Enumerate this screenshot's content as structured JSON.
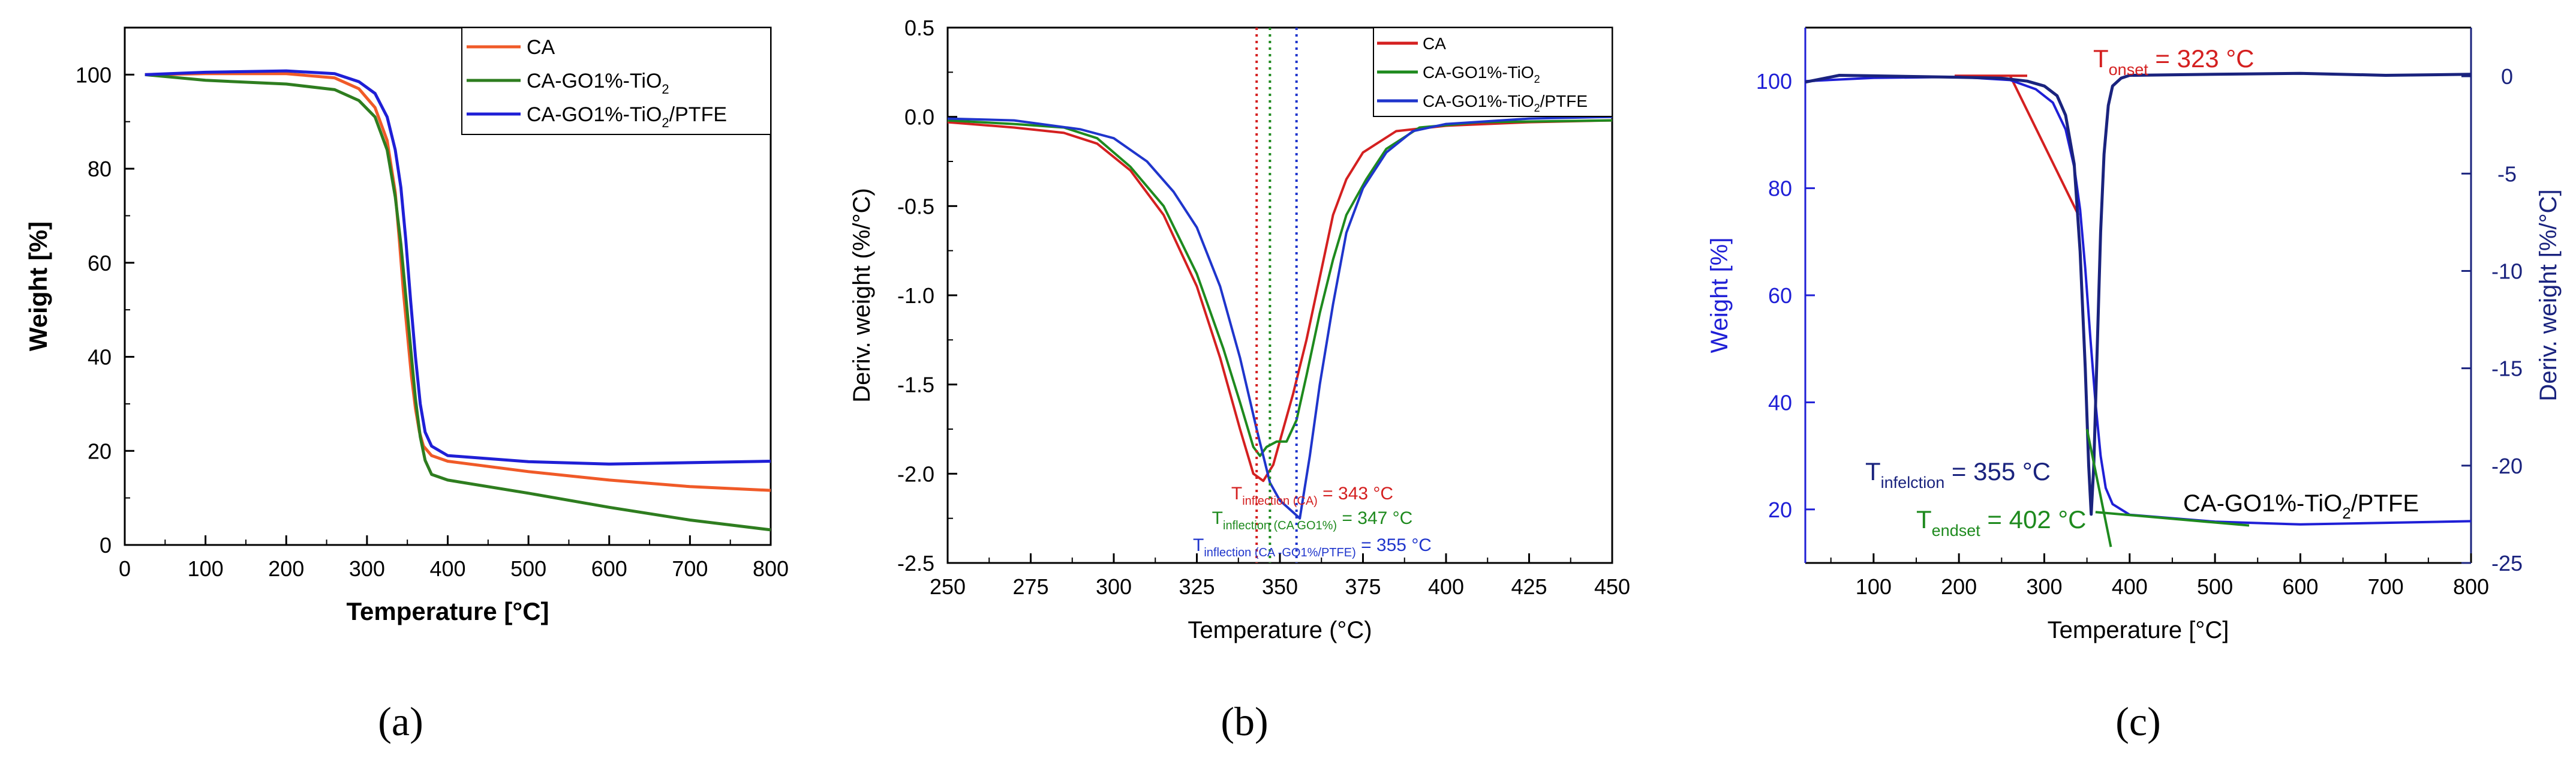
{
  "figure_labels": [
    "(a)",
    "(b)",
    "(c)"
  ],
  "chart_data": [
    {
      "type": "line",
      "panel": "(a)",
      "title": "",
      "xlabel": "Temperature [°C]",
      "ylabel": "Weight [%]",
      "xlim": [
        0,
        800
      ],
      "ylim": [
        0,
        110
      ],
      "xticks": [
        "0",
        "100",
        "200",
        "300",
        "400",
        "500",
        "600",
        "700",
        "800"
      ],
      "yticks": [
        "0",
        "20",
        "40",
        "60",
        "80",
        "100"
      ],
      "legend_position": "top-right",
      "series": [
        {
          "name": "CA",
          "legend_parts": [
            {
              "t": "CA"
            }
          ],
          "color": "#f05a28",
          "points": [
            [
              25,
              100
            ],
            [
              100,
              100.2
            ],
            [
              200,
              100.2
            ],
            [
              260,
              99.3
            ],
            [
              290,
              97
            ],
            [
              310,
              93
            ],
            [
              325,
              86
            ],
            [
              335,
              75
            ],
            [
              340,
              65
            ],
            [
              345,
              54
            ],
            [
              350,
              45
            ],
            [
              355,
              36
            ],
            [
              360,
              29
            ],
            [
              365,
              24
            ],
            [
              370,
              21
            ],
            [
              380,
              19
            ],
            [
              400,
              17.8
            ],
            [
              500,
              15.6
            ],
            [
              600,
              13.8
            ],
            [
              700,
              12.4
            ],
            [
              800,
              11.6
            ]
          ]
        },
        {
          "name": "CA-GO1%-TiO2",
          "legend_parts": [
            {
              "t": "CA-GO1%-TiO"
            },
            {
              "t": "2",
              "sub": true
            }
          ],
          "color": "#2e7d1f",
          "points": [
            [
              25,
              100
            ],
            [
              100,
              98.8
            ],
            [
              200,
              98
            ],
            [
              260,
              96.8
            ],
            [
              290,
              94.5
            ],
            [
              310,
              91
            ],
            [
              325,
              84
            ],
            [
              335,
              74
            ],
            [
              342,
              64
            ],
            [
              348,
              53
            ],
            [
              354,
              42
            ],
            [
              360,
              31
            ],
            [
              366,
              23
            ],
            [
              372,
              18
            ],
            [
              380,
              15
            ],
            [
              400,
              13.8
            ],
            [
              500,
              11
            ],
            [
              600,
              8
            ],
            [
              700,
              5.3
            ],
            [
              800,
              3.2
            ]
          ]
        },
        {
          "name": "CA-GO1%-TiO2/PTFE",
          "legend_parts": [
            {
              "t": "CA-GO1%-TiO"
            },
            {
              "t": "2",
              "sub": true
            },
            {
              "t": "/PTFE"
            }
          ],
          "color": "#1f1fd6",
          "points": [
            [
              25,
              100
            ],
            [
              100,
              100.5
            ],
            [
              200,
              100.8
            ],
            [
              260,
              100.2
            ],
            [
              290,
              98.5
            ],
            [
              310,
              96
            ],
            [
              325,
              91
            ],
            [
              335,
              84
            ],
            [
              342,
              76
            ],
            [
              348,
              65
            ],
            [
              354,
              52
            ],
            [
              360,
              40
            ],
            [
              366,
              30
            ],
            [
              372,
              24
            ],
            [
              380,
              21
            ],
            [
              400,
              19
            ],
            [
              500,
              17.7
            ],
            [
              600,
              17.2
            ],
            [
              700,
              17.5
            ],
            [
              800,
              17.8
            ]
          ]
        }
      ]
    },
    {
      "type": "line",
      "panel": "(b)",
      "title": "",
      "xlabel": "Temperature (°C)",
      "ylabel": "Deriv. weight (%/°C)",
      "xlim": [
        250,
        450
      ],
      "ylim": [
        -2.5,
        0.5
      ],
      "xticks": [
        "250",
        "275",
        "300",
        "325",
        "350",
        "375",
        "400",
        "425",
        "450"
      ],
      "yticks": [
        "-2.5",
        "-2.0",
        "-1.5",
        "-1.0",
        "-0.5",
        "0.0",
        "0.5"
      ],
      "legend_position": "top-right",
      "series": [
        {
          "name": "CA",
          "legend_parts": [
            {
              "t": "CA"
            }
          ],
          "color": "#d42020",
          "points": [
            [
              250,
              -0.03
            ],
            [
              270,
              -0.06
            ],
            [
              285,
              -0.09
            ],
            [
              295,
              -0.15
            ],
            [
              305,
              -0.3
            ],
            [
              315,
              -0.55
            ],
            [
              325,
              -0.95
            ],
            [
              332,
              -1.35
            ],
            [
              338,
              -1.75
            ],
            [
              342,
              -2.0
            ],
            [
              345,
              -2.04
            ],
            [
              348,
              -1.95
            ],
            [
              351,
              -1.75
            ],
            [
              354,
              -1.55
            ],
            [
              358,
              -1.25
            ],
            [
              362,
              -0.9
            ],
            [
              366,
              -0.55
            ],
            [
              370,
              -0.35
            ],
            [
              375,
              -0.2
            ],
            [
              385,
              -0.08
            ],
            [
              400,
              -0.05
            ],
            [
              425,
              -0.03
            ],
            [
              450,
              -0.02
            ]
          ]
        },
        {
          "name": "CA-GO1%-TiO2",
          "legend_parts": [
            {
              "t": "CA-GO1%-TiO"
            },
            {
              "t": "2",
              "sub": true
            }
          ],
          "color": "#1e8a1e",
          "points": [
            [
              250,
              -0.02
            ],
            [
              270,
              -0.04
            ],
            [
              285,
              -0.06
            ],
            [
              295,
              -0.12
            ],
            [
              305,
              -0.28
            ],
            [
              315,
              -0.5
            ],
            [
              325,
              -0.88
            ],
            [
              333,
              -1.3
            ],
            [
              338,
              -1.6
            ],
            [
              342,
              -1.85
            ],
            [
              344,
              -1.9
            ],
            [
              346,
              -1.85
            ],
            [
              349,
              -1.82
            ],
            [
              352,
              -1.82
            ],
            [
              355,
              -1.7
            ],
            [
              358,
              -1.45
            ],
            [
              362,
              -1.1
            ],
            [
              366,
              -0.8
            ],
            [
              370,
              -0.55
            ],
            [
              376,
              -0.35
            ],
            [
              382,
              -0.18
            ],
            [
              392,
              -0.06
            ],
            [
              410,
              -0.03
            ],
            [
              450,
              -0.02
            ]
          ]
        },
        {
          "name": "CA-GO1%-TiO2/PTFE",
          "legend_parts": [
            {
              "t": "CA-GO1%-TiO"
            },
            {
              "t": "2",
              "sub": true
            },
            {
              "t": "/PTFE"
            }
          ],
          "color": "#1f35cc",
          "points": [
            [
              250,
              -0.01
            ],
            [
              270,
              -0.02
            ],
            [
              290,
              -0.07
            ],
            [
              300,
              -0.12
            ],
            [
              310,
              -0.25
            ],
            [
              318,
              -0.42
            ],
            [
              325,
              -0.62
            ],
            [
              332,
              -0.95
            ],
            [
              338,
              -1.35
            ],
            [
              343,
              -1.75
            ],
            [
              347,
              -2.05
            ],
            [
              350,
              -2.15
            ],
            [
              353,
              -2.2
            ],
            [
              356,
              -2.25
            ],
            [
              359,
              -1.9
            ],
            [
              362,
              -1.5
            ],
            [
              366,
              -1.05
            ],
            [
              370,
              -0.65
            ],
            [
              375,
              -0.4
            ],
            [
              382,
              -0.2
            ],
            [
              390,
              -0.08
            ],
            [
              400,
              -0.04
            ],
            [
              425,
              -0.01
            ],
            [
              450,
              0.0
            ]
          ]
        }
      ],
      "inflections": [
        {
          "x": 343,
          "color": "#d42020",
          "parts": [
            {
              "t": "T"
            },
            {
              "t": "inflection (CA)",
              "sub": true
            },
            {
              "t": " = 343 °C"
            }
          ]
        },
        {
          "x": 347,
          "color": "#1e8a1e",
          "parts": [
            {
              "t": "T"
            },
            {
              "t": "inflection (CA GO1%)",
              "sub": true
            },
            {
              "t": " = 347 °C"
            }
          ]
        },
        {
          "x": 355,
          "color": "#1f35cc",
          "parts": [
            {
              "t": "T"
            },
            {
              "t": "inflection (CA -GO1%/PTFE)",
              "sub": true
            },
            {
              "t": " = 355 °C"
            }
          ]
        }
      ]
    },
    {
      "type": "line",
      "panel": "(c)",
      "title": "",
      "xlabel": "Temperature [°C]",
      "ylabel": "Weight [%]",
      "y2label": "Deriv. weight [%/°C]",
      "xlim": [
        20,
        800
      ],
      "ylim": [
        10,
        110
      ],
      "y2lim": [
        -25,
        2.5
      ],
      "xticks": [
        "100",
        "200",
        "300",
        "400",
        "500",
        "600",
        "700",
        "800"
      ],
      "yticks": [
        "20",
        "40",
        "60",
        "80",
        "100"
      ],
      "y2ticks": [
        "-25",
        "-20",
        "-15",
        "-10",
        "-5",
        "0"
      ],
      "series": [
        {
          "name": "Weight",
          "axis": "left",
          "color": "#1f1fd6",
          "points": [
            [
              20,
              100
            ],
            [
              100,
              100.6
            ],
            [
              200,
              100.8
            ],
            [
              260,
              100.2
            ],
            [
              290,
              98.5
            ],
            [
              310,
              96
            ],
            [
              325,
              91
            ],
            [
              335,
              84
            ],
            [
              342,
              76
            ],
            [
              348,
              65
            ],
            [
              354,
              52
            ],
            [
              360,
              40
            ],
            [
              366,
              30
            ],
            [
              372,
              24
            ],
            [
              380,
              21
            ],
            [
              400,
              19
            ],
            [
              500,
              17.7
            ],
            [
              600,
              17.2
            ],
            [
              700,
              17.5
            ],
            [
              800,
              17.8
            ]
          ]
        },
        {
          "name": "Derivative",
          "axis": "right",
          "color": "#1a237e",
          "points": [
            [
              20,
              -0.3
            ],
            [
              60,
              0.05
            ],
            [
              100,
              0.02
            ],
            [
              200,
              -0.05
            ],
            [
              250,
              -0.1
            ],
            [
              280,
              -0.25
            ],
            [
              300,
              -0.5
            ],
            [
              315,
              -1
            ],
            [
              325,
              -2
            ],
            [
              335,
              -4.5
            ],
            [
              342,
              -9
            ],
            [
              348,
              -15
            ],
            [
              352,
              -20
            ],
            [
              355,
              -22.5
            ],
            [
              358,
              -20
            ],
            [
              362,
              -14
            ],
            [
              366,
              -8
            ],
            [
              370,
              -4
            ],
            [
              375,
              -1.5
            ],
            [
              380,
              -0.5
            ],
            [
              390,
              -0.1
            ],
            [
              400,
              0.05
            ],
            [
              500,
              0.1
            ],
            [
              600,
              0.15
            ],
            [
              700,
              0.05
            ],
            [
              800,
              0.1
            ]
          ]
        }
      ],
      "annotations": [
        {
          "name": "t-onset",
          "color": "#d42020",
          "parts": [
            {
              "t": "T"
            },
            {
              "t": "onset",
              "sub": true
            },
            {
              "t": " = 323 °C"
            }
          ]
        },
        {
          "name": "t-inflection",
          "color": "#1a237e",
          "parts": [
            {
              "t": "T"
            },
            {
              "t": "infelction",
              "sub": true
            },
            {
              "t": " = 355 °C"
            }
          ]
        },
        {
          "name": "t-endset",
          "color": "#1e8a1e",
          "parts": [
            {
              "t": "T"
            },
            {
              "t": "endset",
              "sub": true
            },
            {
              "t": " = 402 °C"
            }
          ]
        },
        {
          "name": "sample-label",
          "color": "#000000",
          "parts": [
            {
              "t": "CA-GO1%-TiO"
            },
            {
              "t": "2",
              "sub": true
            },
            {
              "t": "/PTFE"
            }
          ]
        }
      ],
      "onset_tangent": [
        [
          260,
          101
        ],
        [
          340,
          75
        ]
      ],
      "onset_baseline": [
        [
          195,
          101
        ],
        [
          280,
          101
        ]
      ],
      "endset_tangent": [
        [
          350,
          35
        ],
        [
          378,
          13
        ]
      ],
      "endset_baseline": [
        [
          360,
          19.5
        ],
        [
          540,
          17
        ]
      ],
      "inflection_x": 355
    }
  ]
}
